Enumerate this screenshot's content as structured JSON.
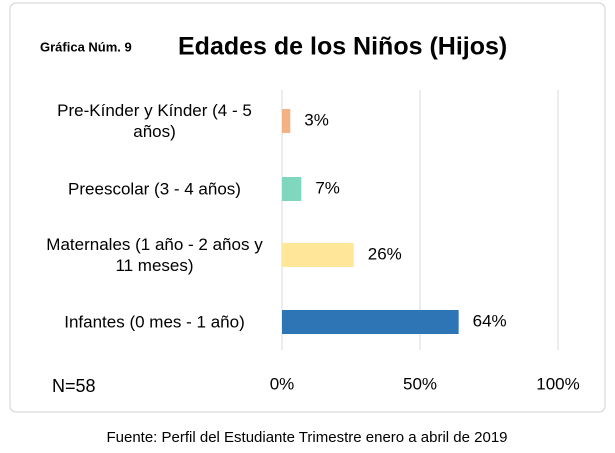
{
  "chart_data": {
    "type": "bar",
    "orientation": "horizontal",
    "subtitle": "Gráfica Núm. 9",
    "title": "Edades de los Niños (Hijos)",
    "categories": [
      "Pre-Kínder y Kínder (4 - 5 años)",
      "Preescolar (3 - 4 años)",
      "Maternales (1 año - 2 años y 11 meses)",
      "Infantes (0 mes - 1 año)"
    ],
    "values": [
      3,
      7,
      26,
      64
    ],
    "value_labels": [
      "3%",
      "7%",
      "26%",
      "64%"
    ],
    "colors": [
      "#f4b183",
      "#7fd8be",
      "#ffe699",
      "#2e75b6"
    ],
    "xlim": [
      0,
      100
    ],
    "xticks": [
      {
        "value": 0,
        "label": "0%"
      },
      {
        "value": 50,
        "label": "50%"
      },
      {
        "value": 100,
        "label": "100%"
      }
    ],
    "grid": true,
    "annotations": [
      "N=58"
    ],
    "source": "Fuente: Perfil del Estudiante Trimestre enero a abril de 2019"
  }
}
